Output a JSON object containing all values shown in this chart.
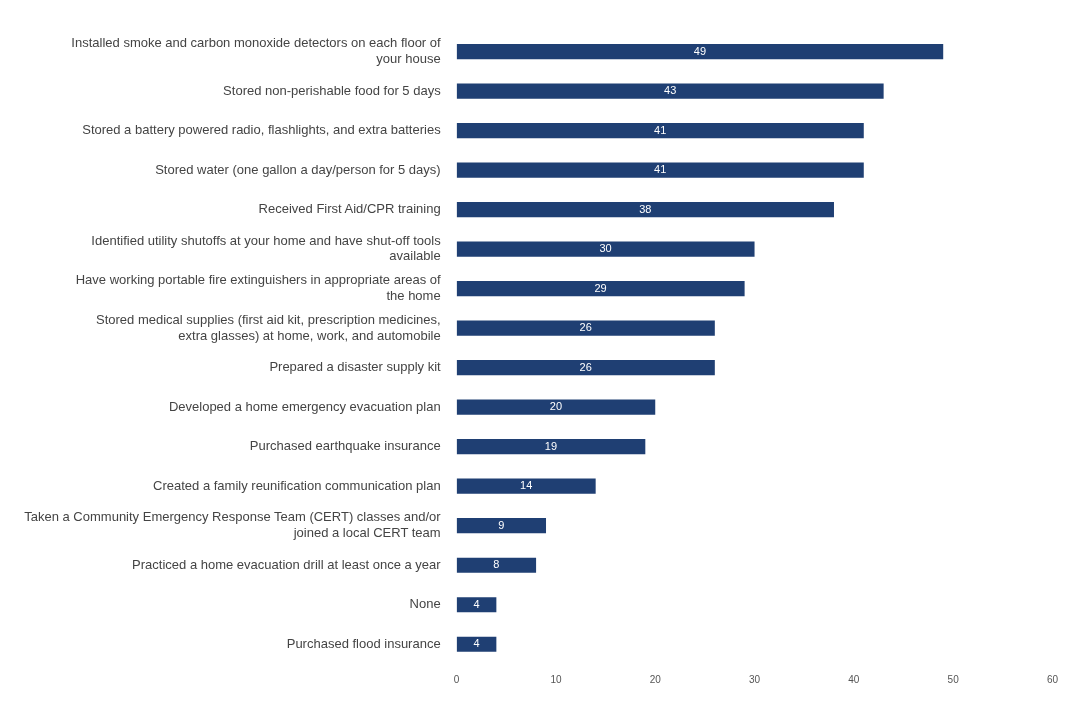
{
  "chart_data": {
    "type": "bar",
    "orientation": "horizontal",
    "categories": [
      "Installed smoke and carbon monoxide detectors on each floor of your house",
      "Stored non-perishable food for 5 days",
      "Stored a battery powered radio, flashlights, and extra batteries",
      "Stored water (one gallon a day/person for 5 days)",
      "Received First Aid/CPR training",
      "Identified utility shutoffs at your home and have shut-off tools available",
      "Have working portable fire extinguishers in appropriate areas of the home",
      "Stored medical supplies (first aid kit, prescription medicines, extra glasses) at home, work, and automobile",
      "Prepared a disaster supply kit",
      "Developed a home emergency evacuation plan",
      "Purchased earthquake insurance",
      "Created a family reunification communication plan",
      "Taken a Community Emergency Response Team (CERT) classes and/or joined a local CERT team",
      "Practiced a home evacuation drill at least once a year",
      "None",
      "Purchased flood insurance"
    ],
    "values": [
      49,
      43,
      41,
      41,
      38,
      30,
      29,
      26,
      26,
      20,
      19,
      14,
      9,
      8,
      4,
      4
    ],
    "color": "#1f3f73",
    "xlim": [
      0,
      60
    ],
    "xticks": [
      0,
      10,
      20,
      30,
      40,
      50,
      60
    ],
    "grid": false,
    "data_labels": true
  }
}
